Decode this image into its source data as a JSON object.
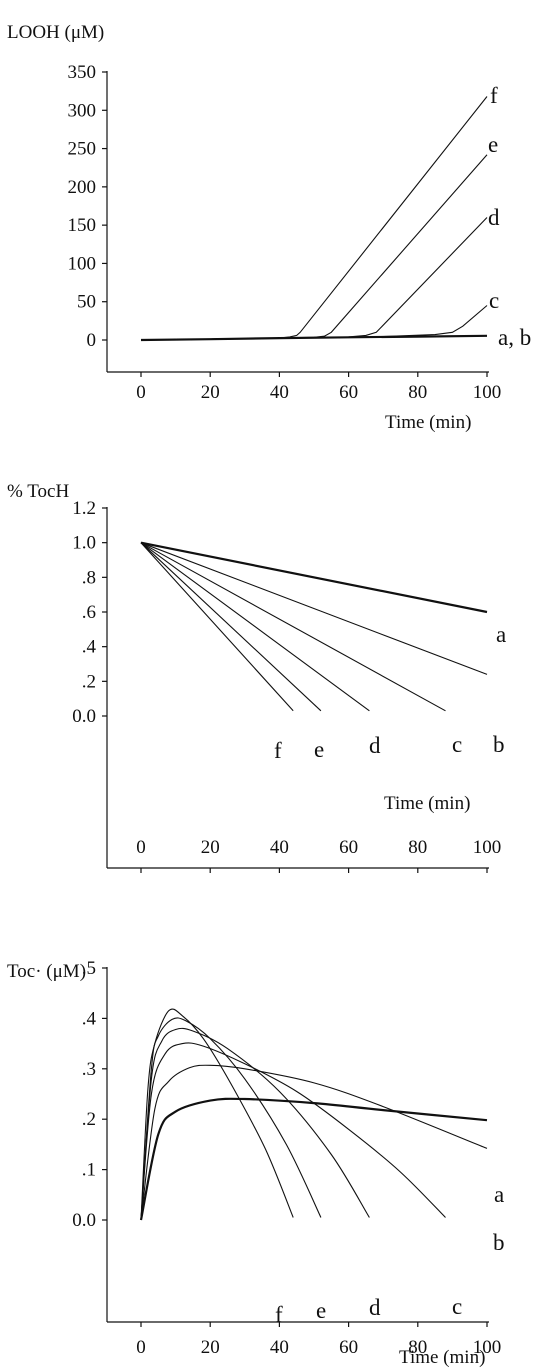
{
  "chart_data": [
    {
      "type": "line",
      "ylabel": "LOOH (μM)",
      "xlabel": "Time (min)",
      "xlim": [
        0,
        100
      ],
      "ylim": [
        -40,
        350
      ],
      "xticks": [
        0,
        20,
        40,
        60,
        80,
        100
      ],
      "xtick_labels": [
        "0",
        "20",
        "40",
        "60",
        "80",
        "100"
      ],
      "yticks": [
        0,
        50,
        100,
        150,
        200,
        250,
        300,
        350
      ],
      "ytick_labels": [
        "0",
        "50",
        "100",
        "150",
        "200",
        "250",
        "300",
        "350"
      ],
      "series": [
        {
          "name": "a, b",
          "x": [
            0,
            20,
            40,
            60,
            80,
            100
          ],
          "y": [
            0,
            1,
            2.5,
            3.5,
            4.5,
            5.5
          ]
        },
        {
          "name": "c",
          "x": [
            0,
            40,
            70,
            85,
            90,
            93,
            100
          ],
          "y": [
            0,
            2.5,
            4.5,
            7,
            10,
            18,
            45
          ]
        },
        {
          "name": "d",
          "x": [
            0,
            40,
            60,
            65,
            68,
            100
          ],
          "y": [
            0,
            2.5,
            4,
            6,
            10,
            160
          ]
        },
        {
          "name": "e",
          "x": [
            0,
            40,
            50,
            53,
            55,
            100
          ],
          "y": [
            0,
            2.5,
            3.5,
            5,
            10,
            242
          ]
        },
        {
          "name": "f",
          "x": [
            0,
            40,
            43,
            45,
            46,
            100
          ],
          "y": [
            0,
            2.5,
            4,
            6,
            10,
            318
          ]
        }
      ]
    },
    {
      "type": "line",
      "ylabel": "% TocH",
      "xlabel": "Time (min)",
      "xlim": [
        0,
        100
      ],
      "ylim": [
        -0.25,
        1.2
      ],
      "xticks": [
        0,
        20,
        40,
        60,
        80,
        100
      ],
      "xtick_labels": [
        "0",
        "20",
        "40",
        "60",
        "80",
        "100"
      ],
      "yticks": [
        0,
        0.2,
        0.4,
        0.6,
        0.8,
        1.0,
        1.2
      ],
      "ytick_labels": [
        "0.0",
        ".2",
        ".4",
        ".6",
        ".8",
        "1.0",
        "1.2"
      ],
      "series": [
        {
          "name": "a",
          "x": [
            0,
            100
          ],
          "y": [
            1.0,
            0.6
          ]
        },
        {
          "name": "b",
          "x": [
            0,
            100
          ],
          "y": [
            1.0,
            0.24
          ]
        },
        {
          "name": "c",
          "x": [
            0,
            88
          ],
          "y": [
            1.0,
            0.03
          ]
        },
        {
          "name": "d",
          "x": [
            0,
            66
          ],
          "y": [
            1.0,
            0.03
          ]
        },
        {
          "name": "e",
          "x": [
            0,
            52
          ],
          "y": [
            1.0,
            0.03
          ]
        },
        {
          "name": "f",
          "x": [
            0,
            44
          ],
          "y": [
            1.0,
            0.03
          ]
        }
      ]
    },
    {
      "type": "line",
      "ylabel": "Toc· (μM)",
      "xlabel": "Time (min)",
      "xlim": [
        0,
        100
      ],
      "ylim": [
        -0.1,
        0.5
      ],
      "xticks": [
        0,
        20,
        40,
        60,
        80,
        100
      ],
      "xtick_labels": [
        "0",
        "20",
        "40",
        "60",
        "80",
        "100"
      ],
      "yticks": [
        0,
        0.1,
        0.2,
        0.3,
        0.4,
        0.5
      ],
      "ytick_labels": [
        "0.0",
        ".1",
        ".2",
        ".3",
        ".4",
        ".5"
      ],
      "series": [
        {
          "name": "a",
          "x": [
            0,
            5,
            10,
            20,
            30,
            50,
            70,
            100
          ],
          "y": [
            0,
            0.17,
            0.215,
            0.237,
            0.24,
            0.232,
            0.218,
            0.198
          ]
        },
        {
          "name": "b",
          "x": [
            0,
            4,
            8,
            14,
            20,
            30,
            50,
            70,
            100
          ],
          "y": [
            0,
            0.22,
            0.275,
            0.302,
            0.307,
            0.3,
            0.272,
            0.225,
            0.142
          ]
        },
        {
          "name": "c",
          "x": [
            0,
            3,
            7,
            12,
            18,
            30,
            45,
            60,
            75,
            88
          ],
          "y": [
            0,
            0.25,
            0.33,
            0.35,
            0.345,
            0.31,
            0.255,
            0.18,
            0.095,
            0.005
          ]
        },
        {
          "name": "d",
          "x": [
            0,
            3,
            6,
            10,
            15,
            25,
            40,
            55,
            66
          ],
          "y": [
            0,
            0.28,
            0.355,
            0.378,
            0.375,
            0.34,
            0.255,
            0.13,
            0.005
          ]
        },
        {
          "name": "e",
          "x": [
            0,
            3,
            5,
            9,
            13,
            20,
            30,
            42,
            52
          ],
          "y": [
            0,
            0.3,
            0.365,
            0.398,
            0.395,
            0.36,
            0.28,
            0.15,
            0.005
          ]
        },
        {
          "name": "f",
          "x": [
            0,
            2,
            4,
            8,
            12,
            18,
            26,
            36,
            44
          ],
          "y": [
            0,
            0.26,
            0.35,
            0.415,
            0.405,
            0.36,
            0.27,
            0.14,
            0.005
          ]
        }
      ]
    }
  ]
}
